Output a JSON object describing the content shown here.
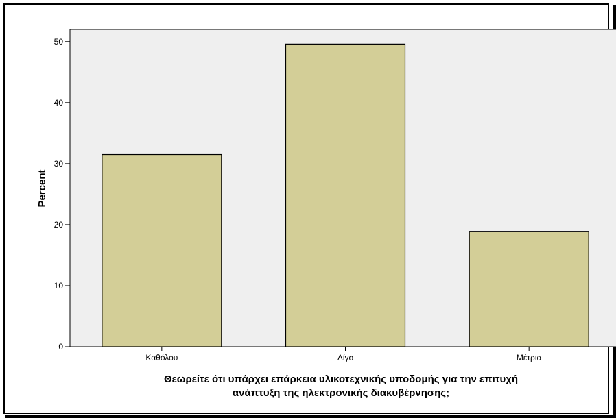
{
  "chart_data": {
    "type": "bar",
    "categories": [
      "Καθόλου",
      "Λίγο",
      "Μέτρια"
    ],
    "values": [
      31.5,
      49.6,
      18.9
    ],
    "ylabel": "Percent",
    "xlabel_lines": [
      "Θεωρείτε ότι υπάρχει επάρκεια υλικοτεχνικής υποδομής για την επιτυχή",
      "ανάπτυξη της ηλεκτρονικής διακυβέρνησης;"
    ],
    "ylim": [
      0,
      52
    ],
    "yticks": [
      0,
      10,
      20,
      30,
      40,
      50
    ],
    "grid": false,
    "colors": {
      "bar_fill": "#D3CE97",
      "bar_stroke": "#000000",
      "plot_background": "#EFEFEF"
    }
  }
}
